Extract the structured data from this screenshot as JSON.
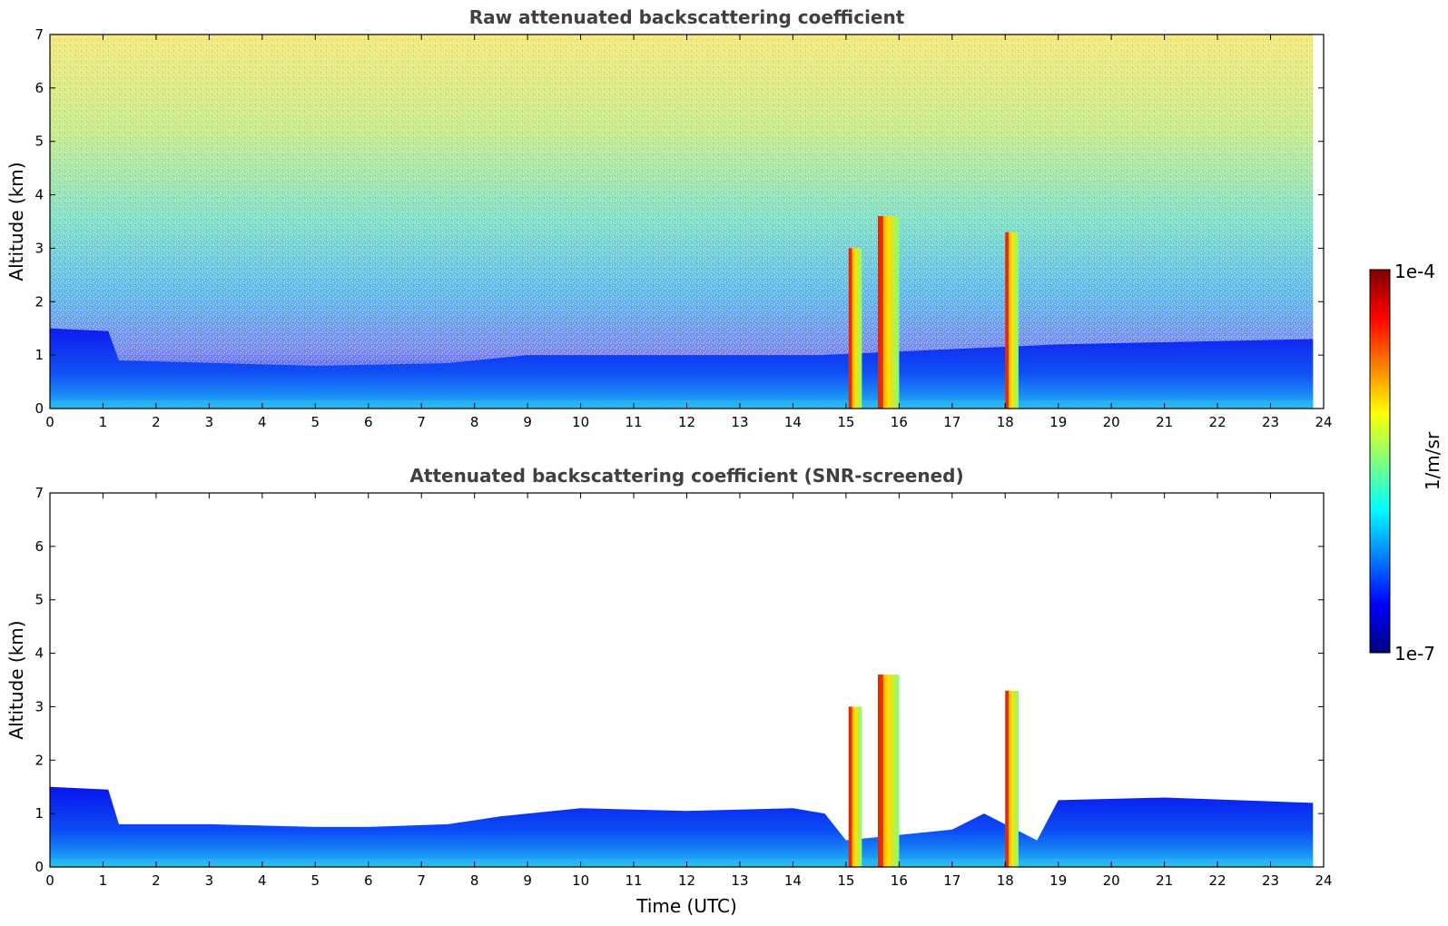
{
  "colors": {
    "jet": [
      "#00007f",
      "#0000ff",
      "#007fff",
      "#00ffff",
      "#7fff7f",
      "#ffff00",
      "#ff7f00",
      "#ff0000",
      "#7f0000"
    ],
    "title": "#404040"
  },
  "colorbar": {
    "label": "1/m/sr",
    "ticks": [
      "1e-7",
      "1e-4"
    ]
  },
  "chart_data": [
    {
      "type": "heatmap",
      "title": "Raw attenuated backscattering coefficient",
      "xlabel": "",
      "ylabel": "Altitude (km)",
      "xlim": [
        0,
        24
      ],
      "ylim": [
        0,
        7
      ],
      "xticks": [
        "0",
        "1",
        "2",
        "3",
        "4",
        "5",
        "6",
        "7",
        "8",
        "9",
        "10",
        "11",
        "12",
        "13",
        "14",
        "15",
        "16",
        "17",
        "18",
        "19",
        "20",
        "21",
        "22",
        "23",
        "24"
      ],
      "yticks": [
        "0",
        "1",
        "2",
        "3",
        "4",
        "5",
        "6",
        "7"
      ],
      "data_end_hour": 23.8,
      "clouds": [
        {
          "t0": 15.05,
          "t1": 15.3,
          "zbot": 0.0,
          "ztop": 3.0
        },
        {
          "t0": 15.6,
          "t1": 16.0,
          "zbot": 0.0,
          "ztop": 3.6
        },
        {
          "t0": 18.0,
          "t1": 18.25,
          "zbot": 0.0,
          "ztop": 3.3
        }
      ]
    },
    {
      "type": "heatmap",
      "title": "Attenuated backscattering coefficient (SNR-screened)",
      "xlabel": "Time (UTC)",
      "ylabel": "Altitude (km)",
      "xlim": [
        0,
        24
      ],
      "ylim": [
        0,
        7
      ],
      "xticks": [
        "0",
        "1",
        "2",
        "3",
        "4",
        "5",
        "6",
        "7",
        "8",
        "9",
        "10",
        "11",
        "12",
        "13",
        "14",
        "15",
        "16",
        "17",
        "18",
        "19",
        "20",
        "21",
        "22",
        "23",
        "24"
      ],
      "yticks": [
        "0",
        "1",
        "2",
        "3",
        "4",
        "5",
        "6",
        "7"
      ],
      "data_end_hour": 23.8,
      "boundary_layer_top": [
        [
          0,
          1.5
        ],
        [
          1.1,
          1.45
        ],
        [
          1.3,
          0.8
        ],
        [
          3,
          0.8
        ],
        [
          5,
          0.75
        ],
        [
          6,
          0.75
        ],
        [
          7.5,
          0.8
        ],
        [
          8.5,
          0.95
        ],
        [
          10,
          1.1
        ],
        [
          12,
          1.05
        ],
        [
          14,
          1.1
        ],
        [
          14.6,
          1.0
        ],
        [
          15,
          0.5
        ],
        [
          17,
          0.7
        ],
        [
          17.6,
          1.0
        ],
        [
          18.6,
          0.5
        ],
        [
          19,
          1.25
        ],
        [
          21,
          1.3
        ],
        [
          23.8,
          1.2
        ]
      ],
      "clouds": [
        {
          "t0": 15.05,
          "t1": 15.3,
          "zbot": 0.0,
          "ztop": 3.0
        },
        {
          "t0": 15.6,
          "t1": 16.0,
          "zbot": 0.0,
          "ztop": 3.6
        },
        {
          "t0": 18.0,
          "t1": 18.25,
          "zbot": 0.0,
          "ztop": 3.3
        }
      ]
    }
  ]
}
